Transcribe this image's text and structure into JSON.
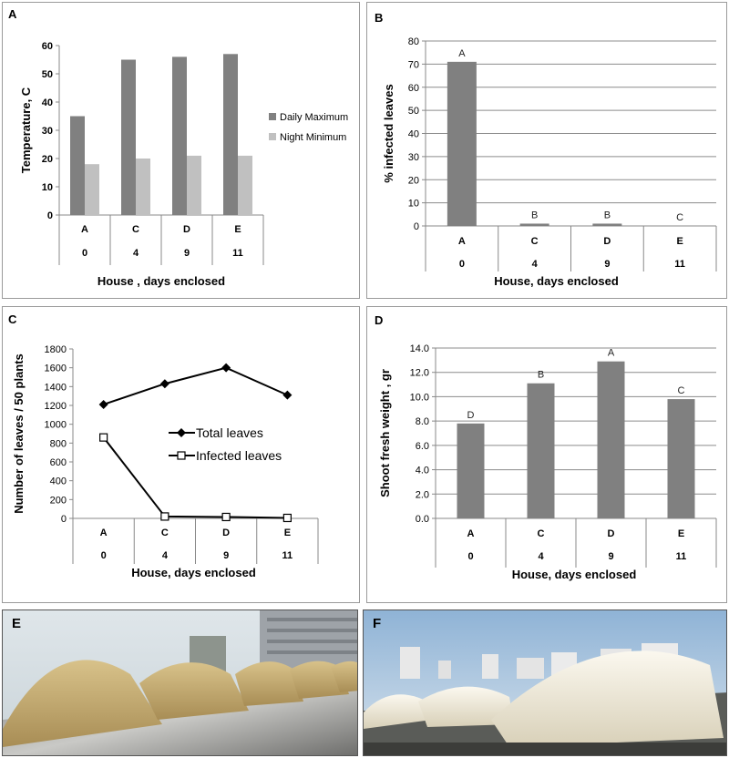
{
  "panels": {
    "A": {
      "letter": "A",
      "chart_data": {
        "type": "bar",
        "categories": [
          "A",
          "C",
          "D",
          "E"
        ],
        "sub_categories": [
          "0",
          "4",
          "9",
          "11"
        ],
        "series": [
          {
            "name": "Daily Maximum",
            "values": [
              35,
              55,
              56,
              57
            ],
            "color": "#808080"
          },
          {
            "name": "Night Minimum",
            "values": [
              18,
              20,
              21,
              21
            ],
            "color": "#c0c0c0"
          }
        ],
        "ylabel": "Temperature, C",
        "xlabel": "House , days enclosed",
        "ylim": [
          0,
          60
        ],
        "yticks": [
          "0",
          "10",
          "20",
          "30",
          "40",
          "50",
          "60"
        ],
        "legend_placement": "right",
        "grid": false
      }
    },
    "B": {
      "letter": "B",
      "chart_data": {
        "type": "bar",
        "categories": [
          "A",
          "C",
          "D",
          "E"
        ],
        "sub_categories": [
          "0",
          "4",
          "9",
          "11"
        ],
        "values": [
          71,
          1,
          1,
          0
        ],
        "significance": [
          "A",
          "B",
          "B",
          "C"
        ],
        "color": "#808080",
        "ylabel": "% infected leaves",
        "xlabel": "House,  days enclosed",
        "ylim": [
          0,
          80
        ],
        "yticks": [
          "0",
          "10",
          "20",
          "30",
          "40",
          "50",
          "60",
          "70",
          "80"
        ],
        "grid": true
      }
    },
    "C": {
      "letter": "C",
      "chart_data": {
        "type": "line",
        "categories": [
          "A",
          "C",
          "D",
          "E"
        ],
        "sub_categories": [
          "0",
          "4",
          "9",
          "11"
        ],
        "series": [
          {
            "name": "Total leaves",
            "values": [
              1210,
              1430,
              1600,
              1310
            ],
            "marker": "diamond"
          },
          {
            "name": "Infected leaves",
            "values": [
              860,
              20,
              15,
              5
            ],
            "marker": "square"
          }
        ],
        "ylabel": "Number of leaves / 50 plants",
        "xlabel": "House, days enclosed",
        "ylim": [
          0,
          1800
        ],
        "yticks": [
          "0",
          "200",
          "400",
          "600",
          "800",
          "1000",
          "1200",
          "1400",
          "1600",
          "1800"
        ],
        "legend_placement": "center",
        "grid": false
      }
    },
    "D": {
      "letter": "D",
      "chart_data": {
        "type": "bar",
        "categories": [
          "A",
          "C",
          "D",
          "E"
        ],
        "sub_categories": [
          "0",
          "4",
          "9",
          "11"
        ],
        "values": [
          7.8,
          11.1,
          12.9,
          9.8
        ],
        "significance": [
          "D",
          "B",
          "A",
          "C"
        ],
        "color": "#808080",
        "ylabel": "Shoot  fresh weight , gr",
        "xlabel": "House, days enclosed",
        "ylim": [
          0,
          14
        ],
        "yticks": [
          "0.0",
          "2.0",
          "4.0",
          "6.0",
          "8.0",
          "10.0",
          "12.0",
          "14.0"
        ],
        "grid": true
      }
    },
    "E": {
      "letter": "E"
    },
    "F": {
      "letter": "F"
    }
  }
}
